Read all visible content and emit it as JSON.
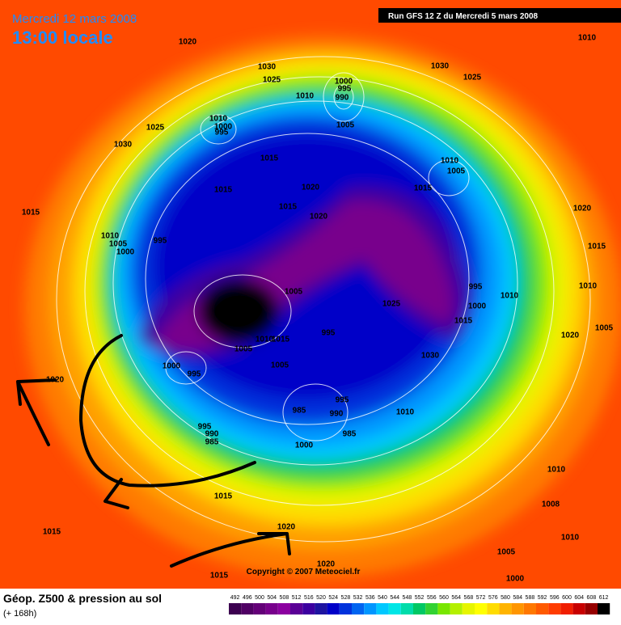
{
  "header": {
    "date": "Mercredi 12 mars 2008",
    "time": "13:00 locale",
    "run": "Run GFS 12 Z du Mercredi 5 mars 2008"
  },
  "footer": {
    "title": "Géop. Z500 & pression au sol",
    "subtitle": "(+ 168h)",
    "copyright": "Copyright © 2007 Meteociel.fr"
  },
  "scale": {
    "values": [
      492,
      496,
      500,
      504,
      508,
      512,
      516,
      520,
      524,
      528,
      532,
      536,
      540,
      544,
      548,
      552,
      556,
      560,
      564,
      568,
      572,
      576,
      580,
      584,
      588,
      592,
      596,
      600,
      604,
      608,
      612
    ],
    "colors": [
      "#3c0050",
      "#500064",
      "#640078",
      "#78008c",
      "#8c00a0",
      "#5a0096",
      "#3c00a0",
      "#1e14a0",
      "#0000c8",
      "#0032dc",
      "#0064f0",
      "#0096ff",
      "#00c8ff",
      "#00e6e6",
      "#00dcaa",
      "#00c864",
      "#32d232",
      "#78e600",
      "#b4f000",
      "#e6f500",
      "#ffff00",
      "#ffdc00",
      "#ffb400",
      "#ff9600",
      "#ff7800",
      "#ff5a00",
      "#ff3c00",
      "#f01e00",
      "#c80000",
      "#960000",
      "#000000"
    ]
  },
  "pressure_labels": [
    "1020",
    "1010",
    "1030",
    "1025",
    "1030",
    "1025",
    "1000",
    "995",
    "990",
    "1010",
    "1010",
    "1000",
    "995",
    "1005",
    "1025",
    "1030",
    "1015",
    "1010",
    "1005",
    "1020",
    "1015",
    "1015",
    "1015",
    "1020",
    "1020",
    "1015",
    "1010",
    "1005",
    "1000",
    "995",
    "1015",
    "995",
    "1005",
    "1010",
    "1010",
    "1000",
    "1025",
    "1015",
    "1005",
    "1020",
    "1010",
    "1015",
    "995",
    "1005",
    "1030",
    "1000",
    "995",
    "1005",
    "1020",
    "995",
    "985",
    "990",
    "1010",
    "985",
    "995",
    "990",
    "985",
    "1000",
    "1010",
    "1015",
    "1008",
    "1015",
    "1020",
    "1010",
    "1005",
    "1020",
    "1000",
    "1015"
  ]
}
